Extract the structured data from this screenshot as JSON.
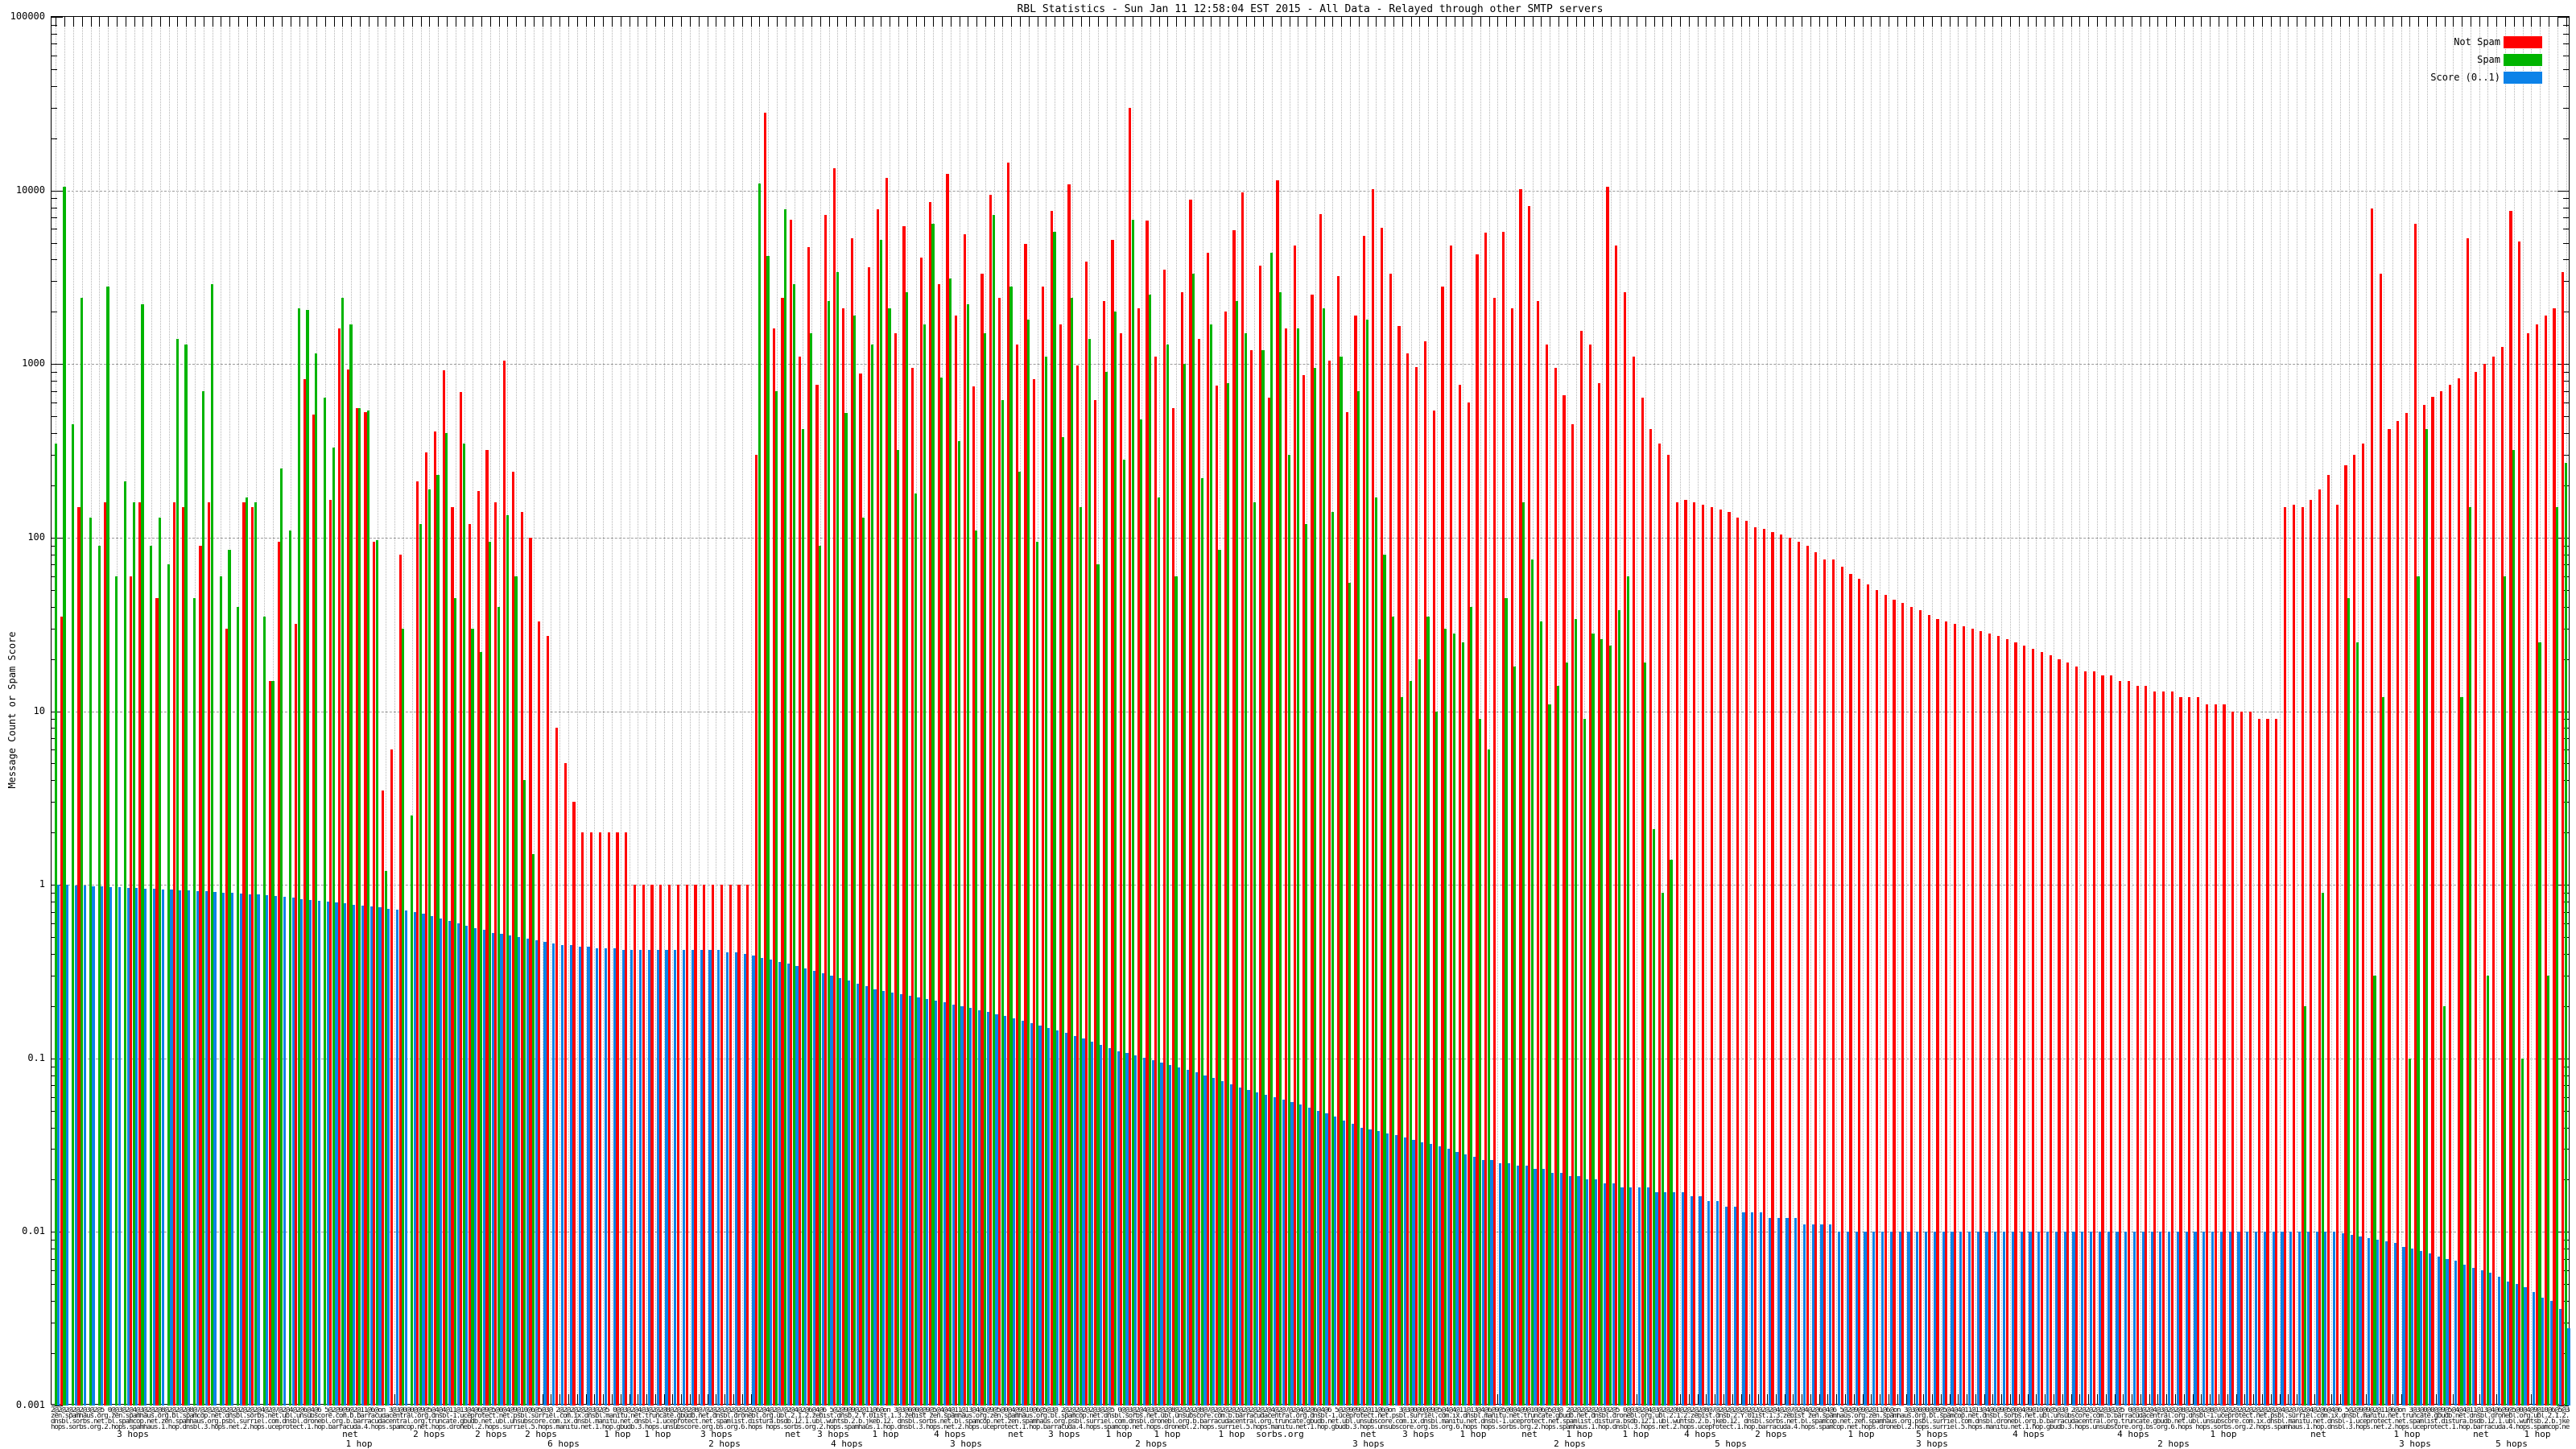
{
  "chart_data": {
    "type": "bar",
    "title": "RBL Statistics - Sun Jan 11 12:58:04 EST 2015 - All Data - Relayed through other SMTP servers",
    "ylabel": "Message Count or Spam Score",
    "xlabel": "",
    "y_scale": "log",
    "ylim": [
      0.001,
      100000
    ],
    "y_ticks": [
      "100000",
      "10000",
      "1000",
      "100",
      "10",
      "1",
      "0.1",
      "0.01",
      "0.001"
    ],
    "grid": "dotted",
    "legend_position": "top-right-inside",
    "n_groups": 290,
    "bar_cluster_order": [
      "Not Spam",
      "Spam",
      "Score (0..1)"
    ],
    "legend": {
      "entries": [
        {
          "label": "Not Spam",
          "color": "#ff0000"
        },
        {
          "label": "Spam",
          "color": "#00b400"
        },
        {
          "label": "Score (0..1)",
          "color": "#0c82e8"
        }
      ]
    },
    "series": [
      {
        "name": "Not Spam",
        "color": "#ff0000",
        "values": [
          null,
          35,
          null,
          150,
          null,
          null,
          160,
          null,
          null,
          60,
          160,
          null,
          45,
          null,
          160,
          150,
          null,
          90,
          160,
          null,
          30,
          null,
          160,
          150,
          null,
          15,
          95,
          null,
          32,
          820,
          510,
          null,
          165,
          1600,
          930,
          560,
          530,
          95,
          3.5,
          6,
          80,
          null,
          210,
          310,
          410,
          920,
          150,
          690,
          120,
          185,
          320,
          160,
          1050,
          240,
          140,
          100,
          33,
          27,
          8,
          5,
          3,
          2,
          2,
          2,
          2,
          2,
          2,
          1,
          1,
          1,
          1,
          1,
          1,
          1,
          1,
          1,
          1,
          1,
          1,
          1,
          1,
          300,
          28000,
          1600,
          2400,
          6800,
          1100,
          4700,
          760,
          7200,
          13500,
          2100,
          5300,
          880,
          3600,
          7800,
          11800,
          1500,
          6200,
          950,
          4100,
          8600,
          2900,
          12500,
          1900,
          5600,
          740,
          3300,
          9400,
          2400,
          14500,
          1300,
          4900,
          820,
          2800,
          7600,
          1700,
          10800,
          980,
          3900,
          620,
          2300,
          5200,
          1500,
          30000,
          2100,
          6700,
          1100,
          3500,
          560,
          2600,
          8900,
          1400,
          4400,
          750,
          2000,
          5900,
          9800,
          1200,
          3700,
          640,
          11500,
          1600,
          4800,
          860,
          2500,
          7300,
          1050,
          3200,
          530,
          1900,
          5500,
          10200,
          6100,
          3300,
          1650,
          1150,
          960,
          1350,
          540,
          2800,
          4800,
          760,
          600,
          4300,
          5700,
          2400,
          5800,
          2100,
          10200,
          8100,
          2300,
          1300,
          950,
          660,
          450,
          1550,
          1300,
          780,
          10500,
          4800,
          2600,
          1100,
          640,
          420,
          350,
          300,
          160,
          165,
          160,
          155,
          150,
          145,
          140,
          130,
          125,
          115,
          112,
          108,
          104,
          100,
          95,
          90,
          82,
          75,
          75,
          68,
          62,
          58,
          54,
          50,
          47,
          44,
          42,
          40,
          38,
          36,
          34,
          33,
          32,
          31,
          30,
          29,
          28,
          27,
          26,
          25,
          24,
          23,
          22,
          21,
          20,
          19,
          18,
          17,
          17,
          16,
          16,
          15,
          15,
          14,
          14,
          13,
          13,
          13,
          12,
          12,
          12,
          11,
          11,
          11,
          10,
          10,
          10,
          9,
          9,
          9,
          150,
          155,
          150,
          165,
          190,
          230,
          155,
          260,
          300,
          350,
          7900,
          3300,
          420,
          470,
          520,
          6400,
          580,
          650,
          700,
          760,
          830,
          5300,
          900,
          1000,
          1100,
          1250,
          7600,
          5100,
          1500,
          1700,
          1900,
          2100,
          3400
        ]
      },
      {
        "name": "Spam",
        "color": "#00b400",
        "values": [
          350,
          10500,
          450,
          2400,
          130,
          90,
          2800,
          60,
          210,
          160,
          2200,
          90,
          130,
          70,
          1400,
          1300,
          45,
          700,
          2900,
          60,
          85,
          40,
          170,
          160,
          35,
          15,
          250,
          110,
          2100,
          2050,
          1150,
          640,
          330,
          2400,
          1700,
          560,
          540,
          97,
          1.2,
          null,
          30,
          2.5,
          120,
          190,
          230,
          400,
          45,
          350,
          30,
          22,
          95,
          40,
          135,
          60,
          4,
          1.5,
          null,
          null,
          null,
          null,
          null,
          null,
          null,
          null,
          null,
          null,
          null,
          null,
          null,
          null,
          null,
          null,
          null,
          null,
          null,
          null,
          null,
          null,
          null,
          null,
          null,
          11000,
          4200,
          700,
          7800,
          2900,
          420,
          1500,
          90,
          2300,
          3400,
          520,
          1900,
          130,
          1300,
          5200,
          2100,
          320,
          2600,
          180,
          1700,
          6400,
          840,
          3100,
          360,
          2200,
          110,
          1500,
          7200,
          620,
          2800,
          240,
          1800,
          95,
          1100,
          5800,
          380,
          2400,
          150,
          1400,
          70,
          900,
          2000,
          280,
          6800,
          480,
          2500,
          170,
          1300,
          60,
          1000,
          3300,
          220,
          1700,
          85,
          780,
          2300,
          1500,
          160,
          1200,
          4400,
          2600,
          300,
          1600,
          120,
          950,
          2100,
          140,
          1100,
          55,
          700,
          1800,
          170,
          80,
          35,
          12,
          15,
          20,
          35,
          10,
          30,
          28,
          25,
          40,
          9,
          6,
          null,
          45,
          18,
          160,
          75,
          33,
          11,
          14,
          19,
          34,
          9,
          28,
          26,
          24,
          38,
          60,
          null,
          19,
          2.1,
          0.9,
          1.4,
          null,
          null,
          null,
          null,
          null,
          null,
          null,
          null,
          null,
          null,
          null,
          null,
          null,
          null,
          null,
          null,
          null,
          null,
          null,
          null,
          null,
          null,
          null,
          null,
          null,
          null,
          null,
          null,
          null,
          null,
          null,
          null,
          null,
          null,
          null,
          null,
          null,
          null,
          null,
          null,
          null,
          null,
          null,
          null,
          null,
          null,
          null,
          null,
          null,
          null,
          null,
          null,
          null,
          null,
          null,
          null,
          null,
          null,
          null,
          null,
          null,
          null,
          null,
          null,
          null,
          null,
          null,
          null,
          null,
          null,
          null,
          null,
          0.2,
          null,
          0.9,
          null,
          null,
          45,
          25,
          null,
          0.3,
          12,
          null,
          null,
          0.1,
          60,
          420,
          null,
          0.2,
          null,
          12,
          150,
          null,
          0.3,
          null,
          60,
          320,
          0.1,
          null,
          25,
          0.3,
          150,
          270
        ]
      },
      {
        "name": "Score (0..1)",
        "color": "#0c82e8",
        "values": [
          1.0,
          1.0,
          0.99,
          0.99,
          0.98,
          0.98,
          0.97,
          0.97,
          0.96,
          0.96,
          0.95,
          0.95,
          0.94,
          0.94,
          0.93,
          0.93,
          0.92,
          0.92,
          0.91,
          0.9,
          0.9,
          0.89,
          0.88,
          0.88,
          0.87,
          0.86,
          0.85,
          0.84,
          0.83,
          0.82,
          0.81,
          0.8,
          0.79,
          0.78,
          0.77,
          0.76,
          0.75,
          0.74,
          0.73,
          0.72,
          0.71,
          0.7,
          0.68,
          0.66,
          0.64,
          0.62,
          0.6,
          0.58,
          0.56,
          0.55,
          0.53,
          0.52,
          0.51,
          0.5,
          0.49,
          0.48,
          0.47,
          0.46,
          0.45,
          0.45,
          0.44,
          0.44,
          0.43,
          0.43,
          0.43,
          0.42,
          0.42,
          0.42,
          0.42,
          0.42,
          0.42,
          0.42,
          0.42,
          0.42,
          0.42,
          0.42,
          0.42,
          0.41,
          0.41,
          0.4,
          0.39,
          0.38,
          0.37,
          0.36,
          0.35,
          0.34,
          0.33,
          0.32,
          0.31,
          0.3,
          0.29,
          0.28,
          0.27,
          0.26,
          0.25,
          0.245,
          0.24,
          0.235,
          0.23,
          0.225,
          0.22,
          0.215,
          0.21,
          0.205,
          0.2,
          0.195,
          0.19,
          0.185,
          0.18,
          0.175,
          0.17,
          0.165,
          0.16,
          0.155,
          0.15,
          0.145,
          0.14,
          0.135,
          0.13,
          0.125,
          0.12,
          0.115,
          0.11,
          0.107,
          0.104,
          0.101,
          0.098,
          0.095,
          0.092,
          0.089,
          0.086,
          0.083,
          0.08,
          0.077,
          0.074,
          0.071,
          0.068,
          0.066,
          0.064,
          0.062,
          0.06,
          0.058,
          0.056,
          0.054,
          0.052,
          0.05,
          0.048,
          0.046,
          0.044,
          0.042,
          0.04,
          0.039,
          0.038,
          0.037,
          0.036,
          0.035,
          0.034,
          0.033,
          0.032,
          0.031,
          0.03,
          0.029,
          0.028,
          0.027,
          0.026,
          0.026,
          0.025,
          0.025,
          0.024,
          0.024,
          0.023,
          0.023,
          0.022,
          0.022,
          0.021,
          0.021,
          0.02,
          0.02,
          0.019,
          0.019,
          0.018,
          0.018,
          0.018,
          0.018,
          0.017,
          0.017,
          0.017,
          0.017,
          0.016,
          0.016,
          0.015,
          0.015,
          0.014,
          0.014,
          0.013,
          0.013,
          0.013,
          0.012,
          0.012,
          0.012,
          0.012,
          0.011,
          0.011,
          0.011,
          0.011,
          0.01,
          0.01,
          0.01,
          0.01,
          0.01,
          0.01,
          0.01,
          0.01,
          0.01,
          0.01,
          0.01,
          0.01,
          0.01,
          0.01,
          0.01,
          0.01,
          0.01,
          0.01,
          0.01,
          0.01,
          0.01,
          0.01,
          0.01,
          0.01,
          0.01,
          0.01,
          0.01,
          0.01,
          0.01,
          0.01,
          0.01,
          0.01,
          0.01,
          0.01,
          0.01,
          0.01,
          0.01,
          0.01,
          0.01,
          0.01,
          0.01,
          0.01,
          0.01,
          0.01,
          0.01,
          0.01,
          0.01,
          0.01,
          0.01,
          0.01,
          0.01,
          0.01,
          0.01,
          0.01,
          0.01,
          0.01,
          0.01,
          0.01,
          0.0098,
          0.0096,
          0.0094,
          0.0092,
          0.009,
          0.0088,
          0.0086,
          0.0082,
          0.008,
          0.0078,
          0.0075,
          0.0072,
          0.007,
          0.0068,
          0.0065,
          0.0062,
          0.006,
          0.0058,
          0.0055,
          0.0052,
          0.005,
          0.0048,
          0.0045,
          0.0042,
          0.004,
          0.0036,
          0.0028
        ]
      }
    ],
    "x_axis": {
      "overlapping_label_rows": [
        "2@2@2@2@2@3@2@5 0@@3@2@4@3@2@2@8@2@2@2@8@7@2@2@2@2@2@2@2@2@4@2@7@2@4@2@6@4@6 5@2@9@9@2@11@6@on 3@3@0@0@@9@5@4@4@11@13@4@6@9@5@0@4@9@10@6@5@3@ ",
        "zen.spamhaus.org.zen.spamhaus.org.bl.spamcop.net.dnsbl.sorbs.net.ubl.unsubscore.com.b.barracudacentral.org.dnsbl-1.uceprotect.net.psbl.surriel.com.ix.dnsbl.manitu.net.truncate.gbudb.net.dnsbl.dronebl.org.ubl.2.1.2.zebist.dnsb.2.Y.01ist.1.3.zebist ",
        "dnsbl.sorbs.net.bl.spamcop.net.zen.spamhaus.org.psbl.surriel.com.dnsbl.dronebl.org.b.barracudacentral.org.truncate.gbudb.net.ubl.unsubscore.com.ix.dnsbl.manitu.net.dnsbl-1.uceprotect.net.spamlist.distura.bsdb.12.1.ubl.wuhtsb.2.b.jkeb.12. ",
        "hops.sorbs.org.2.hops.spamhaus.1.hop.dnsbl.3.hops.net.2.hops.uceprotect.1.hop.barracuda.4.hops.spamcop.net.hops.dronebl.2.hops.surriel.5.hops.manitu.net.1.hop.gbudb.3.hops.unsubscore.org.bs.org.6.hops "
      ],
      "readable_fragments_row1": [
        [
          165,
          "3 hops"
        ],
        [
          435,
          "net"
        ],
        [
          533,
          "2 hops"
        ],
        [
          610,
          "2 hops"
        ],
        [
          672,
          "2 hops"
        ],
        [
          767,
          "1 hop"
        ],
        [
          817,
          "1 hop"
        ],
        [
          890,
          "3 hops"
        ],
        [
          985,
          "net"
        ],
        [
          1035,
          "3 hops"
        ],
        [
          1100,
          "1 hop"
        ],
        [
          1180,
          "4 hops"
        ],
        [
          1262,
          "net"
        ],
        [
          1322,
          "3 hops"
        ],
        [
          1390,
          "1 hop"
        ],
        [
          1450,
          "1 hop"
        ],
        [
          1530,
          "1 hop"
        ],
        [
          1590,
          "sorbs.org"
        ],
        [
          1700,
          "net"
        ],
        [
          1762,
          "3 hops"
        ],
        [
          1830,
          "1 hop"
        ],
        [
          1900,
          "net"
        ],
        [
          1962,
          "1 hop"
        ],
        [
          2032,
          "1 hop"
        ],
        [
          2112,
          "4 hops"
        ],
        [
          2200,
          "2 hops"
        ],
        [
          2312,
          "1 hop"
        ],
        [
          2400,
          "5 hops"
        ],
        [
          2520,
          "4 hops"
        ],
        [
          2650,
          "4 hops"
        ],
        [
          2762,
          "1 hop"
        ],
        [
          2880,
          "net"
        ],
        [
          2990,
          "1 hop"
        ],
        [
          3082,
          "net"
        ],
        [
          3152,
          "1 hop"
        ]
      ],
      "readable_fragments_row2": [
        [
          446,
          "1 hop"
        ],
        [
          700,
          "6 hops"
        ],
        [
          900,
          "2 hops"
        ],
        [
          1052,
          "4 hops"
        ],
        [
          1200,
          "3 hops"
        ],
        [
          1430,
          "2 hops"
        ],
        [
          1700,
          "3 hops"
        ],
        [
          1950,
          "2 hops"
        ],
        [
          2150,
          "5 hops"
        ],
        [
          2400,
          "3 hops"
        ],
        [
          2700,
          "2 hops"
        ],
        [
          3000,
          "3 hops"
        ],
        [
          3120,
          "5 hops"
        ]
      ]
    }
  }
}
